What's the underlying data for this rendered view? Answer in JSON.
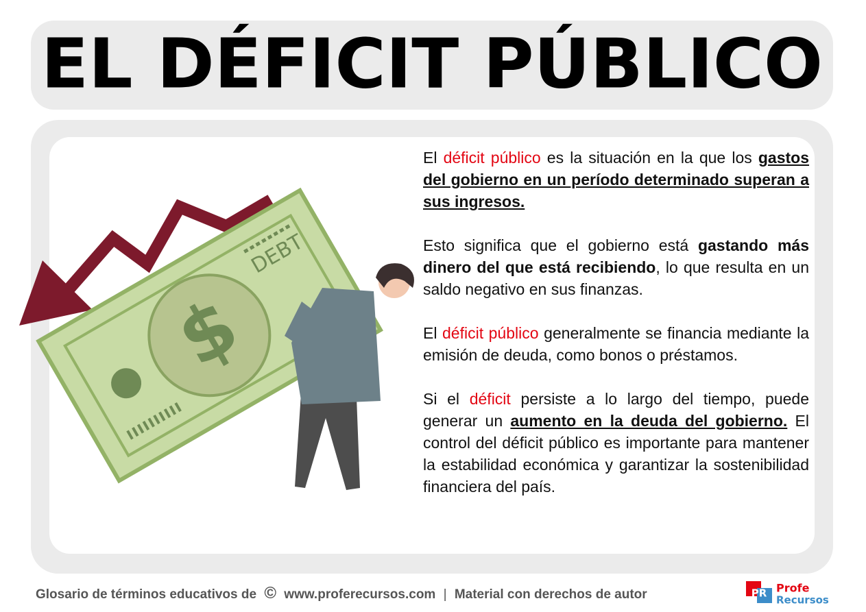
{
  "header": {
    "title": "EL DÉFICIT PÚBLICO"
  },
  "illustration": {
    "labels": [
      "DEBT",
      "$"
    ]
  },
  "body": {
    "paragraphs": [
      [
        "El ",
        "déficit público",
        " es la situación en la que los ",
        "gastos del gobierno en un período determinado superan a sus ingresos."
      ],
      [
        "Esto significa que el gobierno está ",
        "gastando más dinero del que está recibiendo",
        ", lo que resulta en un saldo negativo en sus finanzas."
      ],
      [
        "El ",
        "déficit público",
        " generalmente se financia mediante la emisión de deuda, como bonos o préstamos."
      ],
      [
        "Si el ",
        "déficit",
        " persiste a lo largo del tiempo, puede generar un ",
        "aumento en la deuda del gobierno.",
        " El control del déficit público es importante para mantener la estabilidad económica y garantizar la sostenibilidad financiera del país."
      ]
    ]
  },
  "footer": {
    "text": "Glosario de términos educativos de",
    "symbol": "©",
    "site": "www.proferecursos.com",
    "separator": "|",
    "rights": "Material con derechos de autor",
    "logo": {
      "mark": "PR",
      "line1": "Profe",
      "line2": "Recursos"
    }
  }
}
